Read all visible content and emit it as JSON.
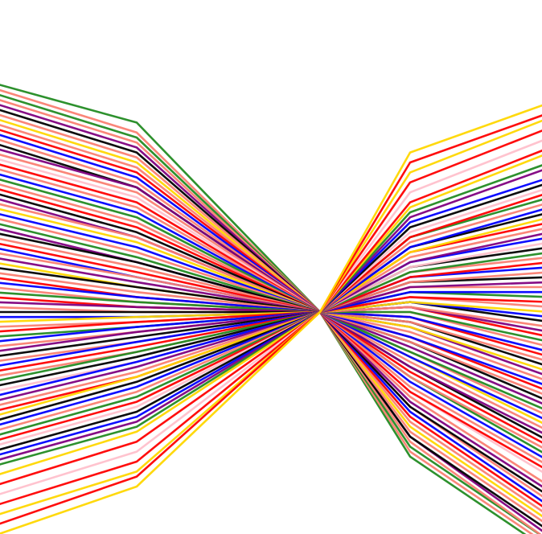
{
  "chart_data": {
    "type": "line",
    "title": "",
    "xlabel": "",
    "ylabel": "",
    "x": [
      0,
      1,
      2,
      3,
      4
    ],
    "xlim": [
      0,
      4
    ],
    "ylim": [
      -5,
      5
    ],
    "grid": false,
    "legend": false,
    "colors": [
      "#228b22",
      "#0000ff",
      "#ff0000",
      "#000000",
      "#800080",
      "#ffd700",
      "#fa8072",
      "#ffc0cb"
    ],
    "series": [
      {
        "values": [
          4.6,
          3.8,
          0.0,
          -2.9,
          -4.8
        ],
        "color": "#228b22"
      },
      {
        "values": [
          4.5,
          3.6,
          0.0,
          -2.8,
          -4.7
        ],
        "color": "#fa8072"
      },
      {
        "values": [
          4.4,
          3.5,
          0.0,
          -2.7,
          -4.6
        ],
        "color": "#228b22"
      },
      {
        "values": [
          4.3,
          3.4,
          0.0,
          -2.6,
          -4.6
        ],
        "color": "#fa8072"
      },
      {
        "values": [
          4.2,
          3.3,
          0.0,
          -2.5,
          -4.5
        ],
        "color": "#800080"
      },
      {
        "values": [
          4.1,
          3.2,
          0.0,
          -2.5,
          -4.4
        ],
        "color": "#000000"
      },
      {
        "values": [
          4.0,
          3.1,
          0.0,
          -2.4,
          -4.3
        ],
        "color": "#fa8072"
      },
      {
        "values": [
          3.9,
          3.0,
          0.0,
          -2.3,
          -4.2
        ],
        "color": "#ffd700"
      },
      {
        "values": [
          3.8,
          2.9,
          0.0,
          -2.2,
          -4.1
        ],
        "color": "#fa8072"
      },
      {
        "values": [
          3.7,
          2.8,
          0.0,
          -2.1,
          -4.0
        ],
        "color": "#ff0000"
      },
      {
        "values": [
          3.6,
          2.7,
          0.0,
          -2.0,
          -3.9
        ],
        "color": "#0000ff"
      },
      {
        "values": [
          3.5,
          2.6,
          0.0,
          -1.9,
          -3.8
        ],
        "color": "#fa8072"
      },
      {
        "values": [
          3.4,
          2.5,
          0.0,
          -1.9,
          -3.7
        ],
        "color": "#000000"
      },
      {
        "values": [
          3.3,
          2.5,
          0.0,
          -1.8,
          -3.6
        ],
        "color": "#800080"
      },
      {
        "values": [
          3.2,
          2.4,
          0.0,
          -1.7,
          -3.5
        ],
        "color": "#fa8072"
      },
      {
        "values": [
          3.1,
          2.3,
          0.0,
          -1.6,
          -3.3
        ],
        "color": "#ffc0cb"
      },
      {
        "values": [
          3.0,
          2.2,
          0.0,
          -1.6,
          -3.2
        ],
        "color": "#ff0000"
      },
      {
        "values": [
          2.9,
          2.1,
          0.0,
          -1.5,
          -3.1
        ],
        "color": "#fa8072"
      },
      {
        "values": [
          2.8,
          2.0,
          0.0,
          -1.4,
          -3.0
        ],
        "color": "#0000ff"
      },
      {
        "values": [
          2.7,
          1.9,
          0.0,
          -1.3,
          -2.9
        ],
        "color": "#228b22"
      },
      {
        "values": [
          2.6,
          1.8,
          0.0,
          -1.3,
          -2.8
        ],
        "color": "#fa8072"
      },
      {
        "values": [
          2.5,
          1.7,
          0.0,
          -1.2,
          -2.7
        ],
        "color": "#ff0000"
      },
      {
        "values": [
          2.4,
          1.6,
          0.0,
          -1.1,
          -2.6
        ],
        "color": "#000000"
      },
      {
        "values": [
          2.3,
          1.5,
          0.0,
          -1.1,
          -2.5
        ],
        "color": "#800080"
      },
      {
        "values": [
          2.2,
          1.5,
          0.0,
          -1.0,
          -2.4
        ],
        "color": "#fa8072"
      },
      {
        "values": [
          2.1,
          1.4,
          0.0,
          -0.9,
          -2.3
        ],
        "color": "#ffd700"
      },
      {
        "values": [
          2.0,
          1.3,
          0.0,
          -0.9,
          -2.2
        ],
        "color": "#0000ff"
      },
      {
        "values": [
          1.9,
          1.2,
          0.0,
          -0.8,
          -2.1
        ],
        "color": "#fa8072"
      },
      {
        "values": [
          1.8,
          1.1,
          0.0,
          -0.8,
          -2.0
        ],
        "color": "#228b22"
      },
      {
        "values": [
          1.7,
          1.0,
          0.0,
          -0.7,
          -1.9
        ],
        "color": "#800080"
      },
      {
        "values": [
          1.6,
          1.0,
          0.0,
          -0.6,
          -1.8
        ],
        "color": "#000000"
      },
      {
        "values": [
          1.5,
          0.9,
          0.0,
          -0.6,
          -1.7
        ],
        "color": "#fa8072"
      },
      {
        "values": [
          1.4,
          0.8,
          0.0,
          -0.5,
          -1.6
        ],
        "color": "#ff0000"
      },
      {
        "values": [
          1.3,
          0.7,
          0.0,
          -0.5,
          -1.5
        ],
        "color": "#0000ff"
      },
      {
        "values": [
          1.2,
          0.7,
          0.0,
          -0.4,
          -1.4
        ],
        "color": "#fa8072"
      },
      {
        "values": [
          1.1,
          0.6,
          0.0,
          -0.3,
          -1.3
        ],
        "color": "#800080"
      },
      {
        "values": [
          1.0,
          0.5,
          0.0,
          -0.3,
          -1.2
        ],
        "color": "#ffd700"
      },
      {
        "values": [
          0.9,
          0.5,
          0.0,
          -0.2,
          -1.1
        ],
        "color": "#000000"
      },
      {
        "values": [
          0.8,
          0.4,
          0.0,
          -0.2,
          -1.0
        ],
        "color": "#fa8072"
      },
      {
        "values": [
          0.7,
          0.3,
          0.0,
          -0.1,
          -0.9
        ],
        "color": "#ff0000"
      },
      {
        "values": [
          0.6,
          0.3,
          0.0,
          -0.1,
          -0.8
        ],
        "color": "#0000ff"
      },
      {
        "values": [
          0.5,
          0.2,
          0.0,
          0.0,
          -0.7
        ],
        "color": "#fa8072"
      },
      {
        "values": [
          0.4,
          0.2,
          0.0,
          0.0,
          -0.6
        ],
        "color": "#228b22"
      },
      {
        "values": [
          0.3,
          0.1,
          0.0,
          0.1,
          -0.5
        ],
        "color": "#ff0000"
      },
      {
        "values": [
          0.2,
          0.1,
          0.0,
          0.1,
          -0.4
        ],
        "color": "#800080"
      },
      {
        "values": [
          0.1,
          0.0,
          0.0,
          0.1,
          -0.3
        ],
        "color": "#fa8072"
      },
      {
        "values": [
          0.0,
          0.0,
          0.0,
          0.2,
          -0.2
        ],
        "color": "#000000"
      },
      {
        "values": [
          -0.1,
          -0.1,
          0.0,
          0.2,
          -0.1
        ],
        "color": "#0000ff"
      },
      {
        "values": [
          -0.2,
          -0.1,
          0.0,
          0.2,
          0.0
        ],
        "color": "#ffd700"
      },
      {
        "values": [
          -0.3,
          -0.2,
          0.0,
          0.3,
          0.1
        ],
        "color": "#fa8072"
      },
      {
        "values": [
          -0.4,
          -0.2,
          0.0,
          0.3,
          0.2
        ],
        "color": "#ff0000"
      },
      {
        "values": [
          -0.5,
          -0.3,
          0.0,
          0.4,
          0.3
        ],
        "color": "#228b22"
      },
      {
        "values": [
          -0.6,
          -0.3,
          0.0,
          0.4,
          0.4
        ],
        "color": "#0000ff"
      },
      {
        "values": [
          -0.7,
          -0.4,
          0.0,
          0.5,
          0.5
        ],
        "color": "#fa8072"
      },
      {
        "values": [
          -0.8,
          -0.4,
          0.0,
          0.5,
          0.6
        ],
        "color": "#800080"
      },
      {
        "values": [
          -0.9,
          -0.5,
          0.0,
          0.6,
          0.7
        ],
        "color": "#000000"
      },
      {
        "values": [
          -1.0,
          -0.6,
          0.0,
          0.6,
          0.8
        ],
        "color": "#fa8072"
      },
      {
        "values": [
          -1.1,
          -0.6,
          0.0,
          0.7,
          0.9
        ],
        "color": "#0000ff"
      },
      {
        "values": [
          -1.2,
          -0.7,
          0.0,
          0.7,
          1.0
        ],
        "color": "#ff0000"
      },
      {
        "values": [
          -1.3,
          -0.8,
          0.0,
          0.8,
          1.1
        ],
        "color": "#fa8072"
      },
      {
        "values": [
          -1.4,
          -0.8,
          0.0,
          0.8,
          1.2
        ],
        "color": "#228b22"
      },
      {
        "values": [
          -1.5,
          -0.9,
          0.0,
          0.9,
          1.3
        ],
        "color": "#000000"
      },
      {
        "values": [
          -1.6,
          -1.0,
          0.0,
          0.9,
          1.4
        ],
        "color": "#ffc0cb"
      },
      {
        "values": [
          -1.7,
          -1.0,
          0.0,
          1.0,
          1.5
        ],
        "color": "#0000ff"
      },
      {
        "values": [
          -1.8,
          -1.1,
          0.0,
          1.0,
          1.6
        ],
        "color": "#800080"
      },
      {
        "values": [
          -1.9,
          -1.2,
          0.0,
          1.1,
          1.7
        ],
        "color": "#fa8072"
      },
      {
        "values": [
          -2.0,
          -1.3,
          0.0,
          1.2,
          1.8
        ],
        "color": "#ff0000"
      },
      {
        "values": [
          -2.1,
          -1.3,
          0.0,
          1.2,
          1.9
        ],
        "color": "#ffd700"
      },
      {
        "values": [
          -2.2,
          -1.4,
          0.0,
          1.3,
          2.0
        ],
        "color": "#000000"
      },
      {
        "values": [
          -2.3,
          -1.5,
          0.0,
          1.3,
          2.1
        ],
        "color": "#0000ff"
      },
      {
        "values": [
          -2.4,
          -1.6,
          0.0,
          1.4,
          2.2
        ],
        "color": "#fa8072"
      },
      {
        "values": [
          -2.5,
          -1.7,
          0.0,
          1.5,
          2.3
        ],
        "color": "#228b22"
      },
      {
        "values": [
          -2.6,
          -1.8,
          0.0,
          1.5,
          2.4
        ],
        "color": "#ff0000"
      },
      {
        "values": [
          -2.7,
          -1.9,
          0.0,
          1.6,
          2.5
        ],
        "color": "#ffc0cb"
      },
      {
        "values": [
          -2.8,
          -2.0,
          0.0,
          1.7,
          2.6
        ],
        "color": "#000000"
      },
      {
        "values": [
          -2.9,
          -2.1,
          0.0,
          1.8,
          2.7
        ],
        "color": "#0000ff"
      },
      {
        "values": [
          -3.0,
          -2.2,
          0.0,
          1.9,
          2.9
        ],
        "color": "#800080"
      },
      {
        "values": [
          -3.1,
          -2.3,
          0.0,
          2.0,
          3.0
        ],
        "color": "#228b22"
      },
      {
        "values": [
          -3.3,
          -2.4,
          0.0,
          2.1,
          3.2
        ],
        "color": "#ffd700"
      },
      {
        "values": [
          -3.5,
          -2.6,
          0.0,
          2.2,
          3.3
        ],
        "color": "#ff0000"
      },
      {
        "values": [
          -3.7,
          -2.8,
          0.0,
          2.4,
          3.5
        ],
        "color": "#ffc0cb"
      },
      {
        "values": [
          -3.9,
          -3.0,
          0.0,
          2.6,
          3.7
        ],
        "color": "#ff0000"
      },
      {
        "values": [
          -4.1,
          -3.2,
          0.0,
          2.8,
          3.9
        ],
        "color": "#ffd700"
      },
      {
        "values": [
          -4.3,
          -3.3,
          0.0,
          3.0,
          4.0
        ],
        "color": "#ff0000"
      },
      {
        "values": [
          -4.5,
          -3.5,
          0.0,
          3.2,
          4.2
        ],
        "color": "#ffd700"
      }
    ]
  }
}
